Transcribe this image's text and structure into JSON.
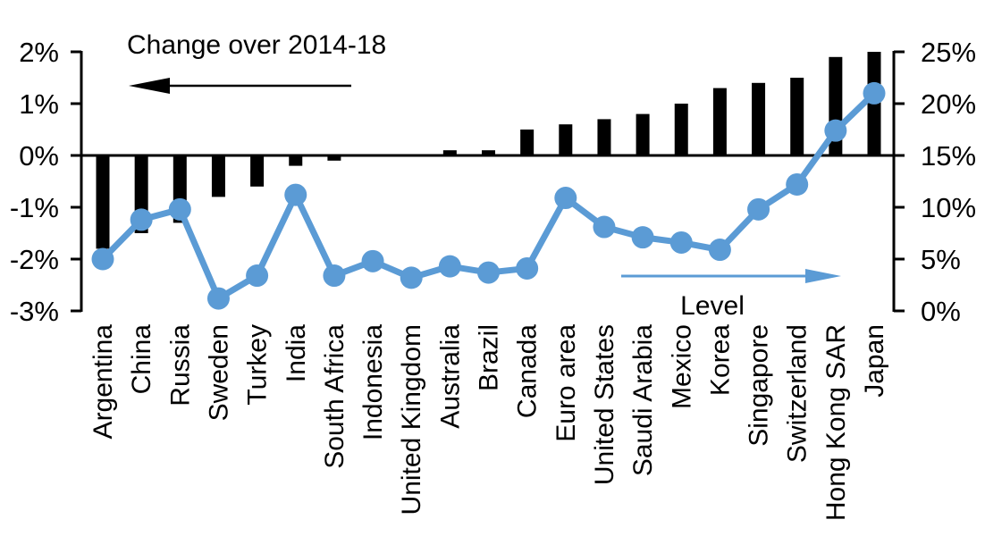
{
  "chart_data": {
    "type": "combo-bar-line",
    "categories": [
      "Argentina",
      "China",
      "Russia",
      "Sweden",
      "Turkey",
      "India",
      "South Africa",
      "Indonesia",
      "United Kingdom",
      "Australia",
      "Brazil",
      "Canada",
      "Euro area",
      "United States",
      "Saudi Arabia",
      "Mexico",
      "Korea",
      "Singapore",
      "Switzerland",
      "Hong Kong SAR",
      "Japan"
    ],
    "series": [
      {
        "name": "Change over 2014-18",
        "type": "bar",
        "axis": "left",
        "color": "#000000",
        "unit": "%",
        "values": [
          -1.8,
          -1.5,
          -1.3,
          -0.8,
          -0.6,
          -0.2,
          -0.1,
          0,
          0,
          0.1,
          0.1,
          0.5,
          0.6,
          0.7,
          0.8,
          1,
          1.3,
          1.4,
          1.5,
          1.9,
          2
        ]
      },
      {
        "name": "Level",
        "type": "line",
        "axis": "right",
        "color": "#5B9BD5",
        "unit": "%",
        "values": [
          5,
          8.8,
          9.8,
          1.2,
          3.4,
          11.2,
          3.4,
          4.8,
          3.2,
          4.3,
          3.7,
          4.1,
          10.9,
          8.1,
          7.1,
          6.6,
          5.9,
          9.8,
          12.2,
          17.4,
          21
        ]
      }
    ],
    "left_axis": {
      "min": -3,
      "max": 2,
      "tick_labels": [
        "2%",
        "1%",
        "0%",
        "-1%",
        "-2%",
        "-3%"
      ],
      "tick_values": [
        2,
        1,
        0,
        -1,
        -2,
        -3
      ]
    },
    "right_axis": {
      "min": 0,
      "max": 25,
      "tick_labels": [
        "25%",
        "20%",
        "15%",
        "10%",
        "5%",
        "0%"
      ],
      "tick_values": [
        25,
        20,
        15,
        10,
        5,
        0
      ]
    },
    "annotations": [
      {
        "text": "Change over 2014-18",
        "arrow_direction": "left",
        "color": "#000000"
      },
      {
        "text": "Level",
        "arrow_direction": "right",
        "color": "#5B9BD5"
      }
    ],
    "legend_position": "none",
    "grid": false
  }
}
